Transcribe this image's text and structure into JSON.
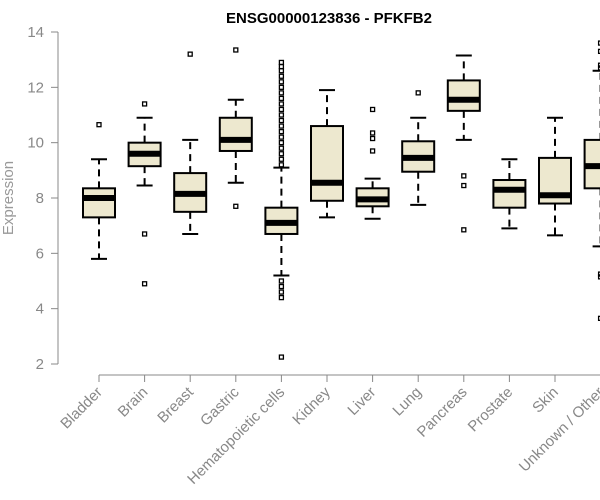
{
  "chart_data": {
    "type": "box",
    "title": "ENSG00000123836 - PFKFB2",
    "xlabel": "",
    "ylabel": "Expression",
    "ylim": [
      2,
      14
    ],
    "yticks": [
      2,
      4,
      6,
      8,
      10,
      12,
      14
    ],
    "categories": [
      "Bladder",
      "Brain",
      "Breast",
      "Gastric",
      "Hematopoietic cells",
      "Kidney",
      "Liver",
      "Lung",
      "Pancreas",
      "Prostate",
      "Skin",
      "Unknown / Other"
    ],
    "boxes": [
      {
        "category": "Bladder",
        "whisker_low": 5.8,
        "q1": 7.3,
        "median": 8.0,
        "q3": 8.35,
        "whisker_high": 9.4,
        "outliers": [
          10.65
        ]
      },
      {
        "category": "Brain",
        "whisker_low": 8.45,
        "q1": 9.15,
        "median": 9.6,
        "q3": 10.0,
        "whisker_high": 10.9,
        "outliers": [
          11.4,
          6.7,
          4.9
        ]
      },
      {
        "category": "Breast",
        "whisker_low": 6.7,
        "q1": 7.5,
        "median": 8.15,
        "q3": 8.9,
        "whisker_high": 10.1,
        "outliers": [
          13.2
        ]
      },
      {
        "category": "Gastric",
        "whisker_low": 8.55,
        "q1": 9.7,
        "median": 10.1,
        "q3": 10.9,
        "whisker_high": 11.55,
        "outliers": [
          13.35,
          7.7
        ]
      },
      {
        "category": "Hematopoietic cells",
        "whisker_low": 5.2,
        "q1": 6.7,
        "median": 7.1,
        "q3": 7.65,
        "whisker_high": 9.1,
        "outliers": [
          12.9,
          12.75,
          12.6,
          12.4,
          12.2,
          12.0,
          11.8,
          11.6,
          11.4,
          11.2,
          11.0,
          10.8,
          10.6,
          10.4,
          10.2,
          10.0,
          9.8,
          9.6,
          9.4,
          9.2,
          5.0,
          4.8,
          4.6,
          4.4,
          2.25
        ]
      },
      {
        "category": "Kidney",
        "whisker_low": 7.3,
        "q1": 7.9,
        "median": 8.55,
        "q3": 10.6,
        "whisker_high": 11.9,
        "outliers": []
      },
      {
        "category": "Liver",
        "whisker_low": 7.25,
        "q1": 7.7,
        "median": 7.95,
        "q3": 8.35,
        "whisker_high": 8.7,
        "outliers": [
          11.2,
          10.35,
          10.15,
          9.7
        ]
      },
      {
        "category": "Lung",
        "whisker_low": 7.75,
        "q1": 8.95,
        "median": 9.45,
        "q3": 10.05,
        "whisker_high": 10.9,
        "outliers": [
          11.8
        ]
      },
      {
        "category": "Pancreas",
        "whisker_low": 10.1,
        "q1": 11.15,
        "median": 11.55,
        "q3": 12.25,
        "whisker_high": 13.15,
        "outliers": [
          8.8,
          8.45,
          6.85
        ]
      },
      {
        "category": "Prostate",
        "whisker_low": 6.9,
        "q1": 7.65,
        "median": 8.3,
        "q3": 8.65,
        "whisker_high": 9.4,
        "outliers": []
      },
      {
        "category": "Skin",
        "whisker_low": 6.65,
        "q1": 7.8,
        "median": 8.1,
        "q3": 9.45,
        "whisker_high": 10.9,
        "outliers": []
      },
      {
        "category": "Unknown / Other",
        "whisker_low": 6.25,
        "q1": 8.35,
        "median": 9.15,
        "q3": 10.1,
        "whisker_high": 12.6,
        "outliers": [
          13.6,
          13.3,
          12.8,
          12.7,
          5.25,
          5.15,
          3.65
        ]
      }
    ],
    "grid": false,
    "legend": "none",
    "colors": {
      "box_fill": "#ede8cf",
      "box_stroke": "#000000",
      "axis": "#888888"
    }
  }
}
